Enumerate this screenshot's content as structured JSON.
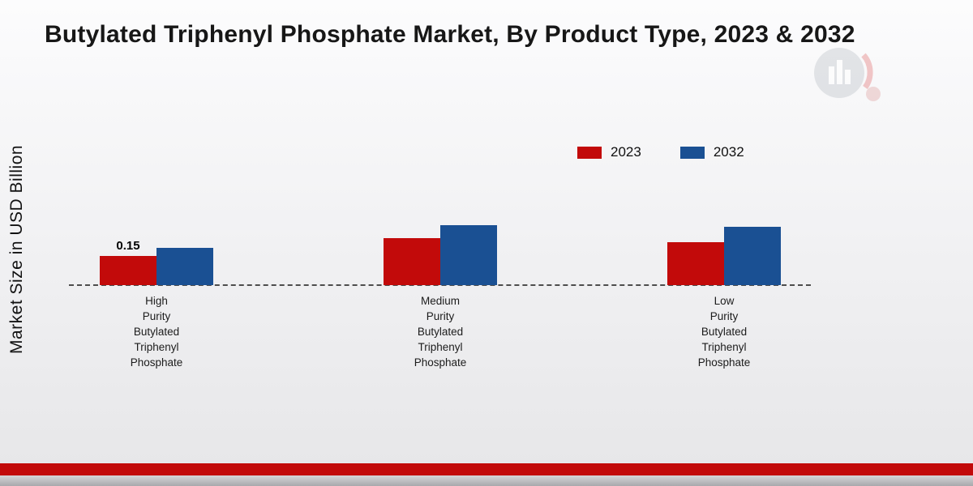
{
  "chart_data": {
    "type": "bar",
    "title": "Butylated Triphenyl Phosphate Market, By Product Type, 2023 & 2032",
    "ylabel": "Market Size in USD Billion",
    "xlabel": "",
    "categories": [
      "High Purity Butylated Triphenyl Phosphate",
      "Medium Purity Butylated Triphenyl Phosphate",
      "Low Purity Butylated Triphenyl Phosphate"
    ],
    "category_label_lines": [
      [
        "High",
        "Purity",
        "Butylated",
        "Triphenyl",
        "Phosphate"
      ],
      [
        "Medium",
        "Purity",
        "Butylated",
        "Triphenyl",
        "Phosphate"
      ],
      [
        "Low",
        "Purity",
        "Butylated",
        "Triphenyl",
        "Phosphate"
      ]
    ],
    "series": [
      {
        "name": "2023",
        "color": "#c20a0a",
        "values": [
          0.15,
          0.24,
          0.22
        ]
      },
      {
        "name": "2032",
        "color": "#1a5093",
        "values": [
          0.19,
          0.31,
          0.3
        ]
      }
    ],
    "data_labels": [
      {
        "series": "2023",
        "category_index": 0,
        "text": "0.15"
      }
    ],
    "ylim": [
      0,
      0.35
    ],
    "grid": false,
    "legend_position": "top-right",
    "axis_style": "dashed-baseline"
  },
  "colors": {
    "series_2023": "#c20a0a",
    "series_2032": "#1a5093",
    "footer_band": "#c20a0a",
    "axis_line": "#4d4d4d",
    "background_top": "#fcfcfd",
    "background_bottom": "#e6e6e8"
  }
}
